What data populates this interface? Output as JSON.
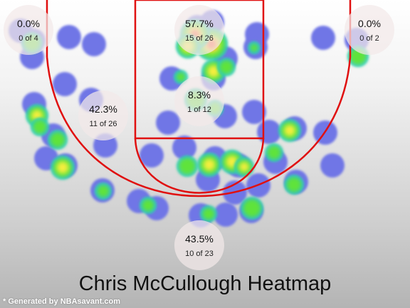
{
  "chart_data": {
    "type": "heatmap",
    "title": "Chris McCullough Heatmap",
    "player": "Chris McCullough",
    "colors": {
      "miss": "#6f76e6",
      "heat_low": "#5fe33a",
      "heat_mid": "#f4ee3c",
      "heat_high": "#ff5a3a",
      "court_lines": "#e01010",
      "zone_bubble": "#f3e9e9"
    },
    "zones": [
      {
        "id": "left-corner-three",
        "percent": "0.0%",
        "made_attempted": "0 of 4",
        "made": 0,
        "attempted": 4
      },
      {
        "id": "restricted-area",
        "percent": "57.7%",
        "made_attempted": "15 of 26",
        "made": 15,
        "attempted": 26
      },
      {
        "id": "right-corner-three",
        "percent": "0.0%",
        "made_attempted": "0 of 2",
        "made": 0,
        "attempted": 2
      },
      {
        "id": "left-midrange",
        "percent": "42.3%",
        "made_attempted": "11 of 26",
        "made": 11,
        "attempted": 26
      },
      {
        "id": "paint-non-ra",
        "percent": "8.3%",
        "made_attempted": "1 of 12",
        "made": 1,
        "attempted": 12
      },
      {
        "id": "above-break-three",
        "percent": "43.5%",
        "made_attempted": "10 of 23",
        "made": 10,
        "attempted": 23
      }
    ]
  },
  "footer": {
    "credit": "* Generated by NBAsavant.com"
  }
}
